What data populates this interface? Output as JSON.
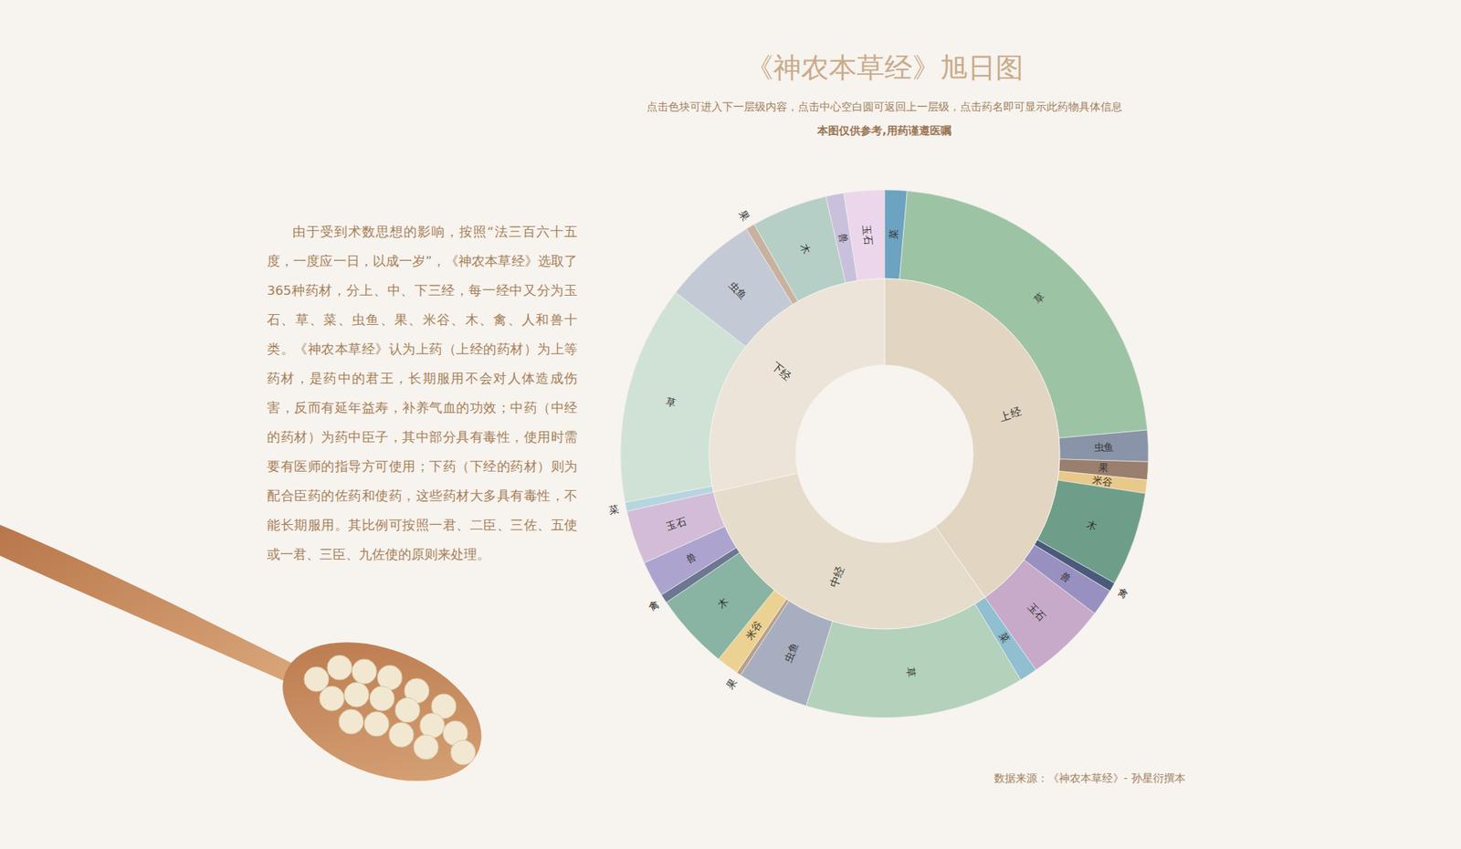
{
  "chart_data": {
    "type": "sunburst",
    "title": "《神农本草经》旭日图",
    "subtitle": "点击色块可进入下一层级内容，点击中心空白圆可返回上一层级，点击药名即可显示此药物具体信息",
    "note": "本图仅供参考,用药谨遵医嘱",
    "description": "由于受到术数思想的影响，按照“法三百六十五度，一度应一日，以成一岁”，《神农本草经》选取了365种药材，分上、中、下三经，每一经中又分为玉石、草、菜、虫鱼、果、米谷、木、禽、人和兽十类。《神农本草经》认为上药（上经的药材）为上等药材，是药中的君王，长期服用不会对人体造成伤害，反而有延年益寿，补养气血的功效；中药（中经的药材）为药中臣子，其中部分具有毒性，使用时需要有医师的指导方可使用；下药（下经的药材）则为配合臣药的佐药和使药，这些药材大多具有毒性，不能长期服用。其比例可按照一君、二臣、三佐、五使或一君、三臣、九佐使的原则来处理。",
    "source": "数据来源：《神农本草经》- 孙星衍撰本",
    "series": [
      {
        "name": "上经",
        "color": "#e2d5c2",
        "categories": [
          "菜",
          "草",
          "虫鱼",
          "果",
          "米谷",
          "木",
          "禽",
          "兽",
          "玉石"
        ],
        "values": [
          5,
          81,
          7,
          4,
          3,
          21,
          2,
          6,
          18
        ],
        "colors": [
          "#6ca3c0",
          "#9dc3a5",
          "#8a94a8",
          "#9a7f6e",
          "#e8c98a",
          "#6e9e8a",
          "#4a5a7c",
          "#9890c0",
          "#c7a9c9"
        ]
      },
      {
        "name": "中经",
        "color": "#e6dccb",
        "categories": [
          "菜",
          "草",
          "虫鱼",
          "果",
          "米谷",
          "木",
          "禽",
          "兽",
          "玉石"
        ],
        "values": [
          4,
          49,
          16,
          1,
          5,
          17,
          2,
          8,
          12
        ],
        "colors": [
          "#8fbfd1",
          "#b3d1bb",
          "#a7aec0",
          "#b89f8d",
          "#ecd292",
          "#89b3a2",
          "#6c7791",
          "#aca4cf",
          "#d3bcd7"
        ]
      },
      {
        "name": "下经",
        "color": "#ece4d8",
        "categories": [
          "菜",
          "草",
          "虫鱼",
          "果",
          "木",
          "兽",
          "玉石"
        ],
        "values": [
          2,
          49,
          21,
          2,
          17,
          4,
          9
        ],
        "colors": [
          "#b5d5e0",
          "#d0e2d5",
          "#c3cad6",
          "#c8b29f",
          "#b6cfc6",
          "#c9c0dc",
          "#ecd6eb"
        ]
      }
    ]
  }
}
